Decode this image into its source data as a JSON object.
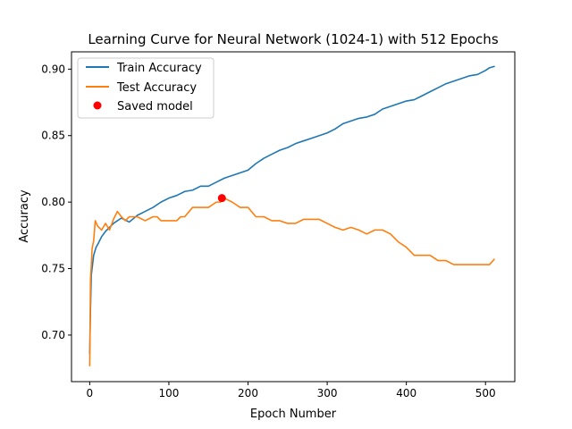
{
  "chart_data": {
    "type": "line",
    "title": "Learning Curve for Neural Network (1024-1) with 512 Epochs",
    "xlabel": "Epoch Number",
    "ylabel": "Accuracy",
    "xlim": [
      -23,
      537
    ],
    "ylim": [
      0.665,
      0.913
    ],
    "xticks": [
      0,
      100,
      200,
      300,
      400,
      500
    ],
    "yticks": [
      0.7,
      0.75,
      0.8,
      0.85,
      0.9
    ],
    "xtick_labels": [
      "0",
      "100",
      "200",
      "300",
      "400",
      "500"
    ],
    "ytick_labels": [
      "0.70",
      "0.75",
      "0.80",
      "0.85",
      "0.90"
    ],
    "grid": false,
    "legend_position": "top-left",
    "series": [
      {
        "name": "Train Accuracy",
        "color": "#1f77b4",
        "x": [
          0,
          1,
          2,
          3,
          5,
          8,
          10,
          15,
          20,
          25,
          30,
          40,
          50,
          60,
          70,
          80,
          90,
          100,
          110,
          120,
          130,
          140,
          150,
          160,
          170,
          180,
          190,
          200,
          210,
          220,
          230,
          240,
          250,
          260,
          270,
          280,
          290,
          300,
          310,
          320,
          330,
          340,
          350,
          360,
          370,
          380,
          390,
          400,
          410,
          420,
          430,
          440,
          450,
          460,
          470,
          480,
          490,
          500,
          505,
          511
        ],
        "y": [
          0.686,
          0.72,
          0.745,
          0.75,
          0.76,
          0.766,
          0.768,
          0.774,
          0.778,
          0.781,
          0.784,
          0.788,
          0.785,
          0.79,
          0.793,
          0.796,
          0.8,
          0.803,
          0.805,
          0.808,
          0.809,
          0.812,
          0.812,
          0.815,
          0.818,
          0.82,
          0.822,
          0.824,
          0.829,
          0.833,
          0.836,
          0.839,
          0.841,
          0.844,
          0.846,
          0.848,
          0.85,
          0.852,
          0.855,
          0.859,
          0.861,
          0.863,
          0.864,
          0.866,
          0.87,
          0.872,
          0.874,
          0.876,
          0.877,
          0.88,
          0.883,
          0.886,
          0.889,
          0.891,
          0.893,
          0.895,
          0.896,
          0.899,
          0.901,
          0.902
        ]
      },
      {
        "name": "Test Accuracy",
        "color": "#ff7f0e",
        "x": [
          0,
          1,
          2,
          3,
          5,
          7,
          10,
          15,
          20,
          25,
          30,
          35,
          40,
          45,
          50,
          60,
          70,
          80,
          85,
          90,
          100,
          110,
          115,
          120,
          130,
          140,
          150,
          160,
          165,
          170,
          180,
          190,
          200,
          210,
          220,
          230,
          240,
          250,
          260,
          270,
          280,
          290,
          300,
          310,
          320,
          330,
          340,
          350,
          360,
          370,
          380,
          385,
          390,
          400,
          410,
          420,
          430,
          440,
          450,
          460,
          470,
          480,
          490,
          500,
          505,
          511
        ],
        "y": [
          0.677,
          0.742,
          0.752,
          0.765,
          0.771,
          0.786,
          0.782,
          0.779,
          0.784,
          0.779,
          0.787,
          0.793,
          0.789,
          0.786,
          0.789,
          0.789,
          0.786,
          0.789,
          0.789,
          0.786,
          0.786,
          0.786,
          0.789,
          0.789,
          0.796,
          0.796,
          0.796,
          0.8,
          0.8,
          0.803,
          0.8,
          0.796,
          0.796,
          0.789,
          0.789,
          0.786,
          0.786,
          0.784,
          0.784,
          0.787,
          0.787,
          0.787,
          0.784,
          0.781,
          0.779,
          0.781,
          0.779,
          0.776,
          0.779,
          0.779,
          0.776,
          0.773,
          0.77,
          0.766,
          0.76,
          0.76,
          0.76,
          0.756,
          0.756,
          0.753,
          0.753,
          0.753,
          0.753,
          0.753,
          0.753,
          0.757
        ]
      }
    ],
    "markers": [
      {
        "name": "Saved model",
        "color": "#ff0000",
        "x": 167,
        "y": 0.803
      }
    ]
  }
}
